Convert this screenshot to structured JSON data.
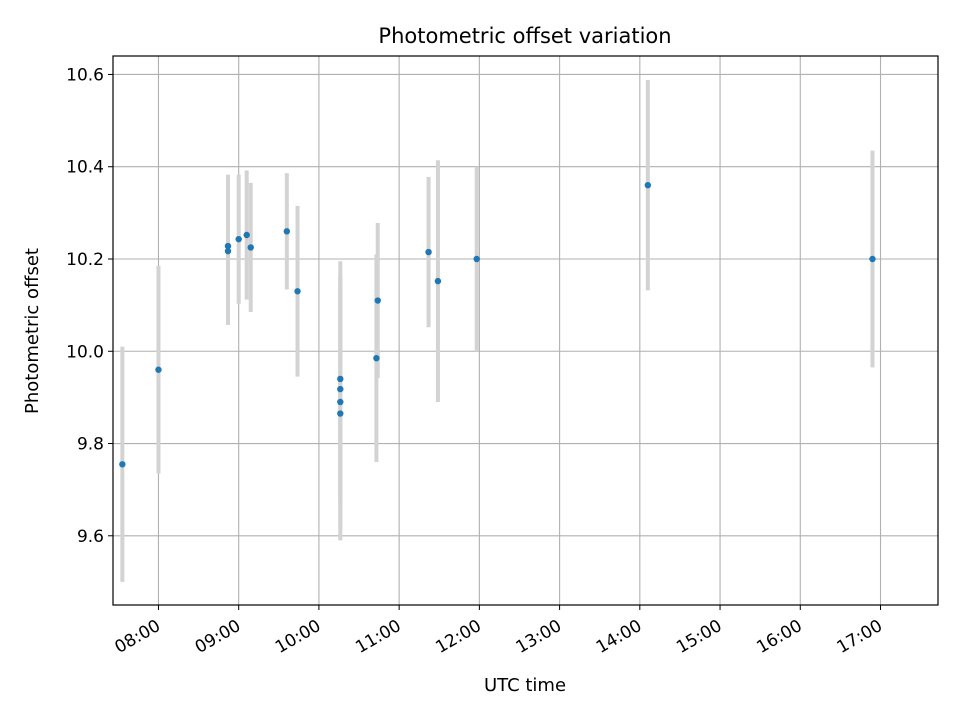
{
  "chart_data": {
    "type": "scatter",
    "title": "Photometric offset variation",
    "xlabel": "UTC time",
    "ylabel": "Photometric offset",
    "x_ticks": [
      "08:00",
      "09:00",
      "10:00",
      "11:00",
      "12:00",
      "13:00",
      "14:00",
      "15:00",
      "16:00",
      "17:00"
    ],
    "y_ticks": [
      "9.6",
      "9.8",
      "10.0",
      "10.2",
      "10.4",
      "10.6"
    ],
    "xlim": [
      "07:26",
      "17:43"
    ],
    "ylim": [
      9.45,
      10.64
    ],
    "grid": true,
    "colors": {
      "points": "#1f77b4",
      "errorbars": "#d3d3d3",
      "grid": "#b0b0b0",
      "axes": "#000000"
    },
    "points": [
      {
        "time": "07:33",
        "y": 9.755,
        "yerr": 0.255
      },
      {
        "time": "08:00",
        "y": 9.96,
        "yerr": 0.225
      },
      {
        "time": "08:52",
        "y": 10.228,
        "yerr": 0.155
      },
      {
        "time": "08:52",
        "y": 10.217,
        "yerr": 0.16
      },
      {
        "time": "09:00",
        "y": 10.243,
        "yerr": 0.14
      },
      {
        "time": "09:06",
        "y": 10.252,
        "yerr": 0.14
      },
      {
        "time": "09:09",
        "y": 10.225,
        "yerr": 0.14
      },
      {
        "time": "09:36",
        "y": 10.26,
        "yerr": 0.126
      },
      {
        "time": "09:44",
        "y": 10.13,
        "yerr": 0.185
      },
      {
        "time": "10:16",
        "y": 9.94,
        "yerr": 0.255
      },
      {
        "time": "10:16",
        "y": 9.918,
        "yerr": 0.245
      },
      {
        "time": "10:16",
        "y": 9.89,
        "yerr": 0.275
      },
      {
        "time": "10:16",
        "y": 9.865,
        "yerr": 0.275
      },
      {
        "time": "10:43",
        "y": 9.985,
        "yerr": 0.225
      },
      {
        "time": "10:44",
        "y": 10.11,
        "yerr": 0.168
      },
      {
        "time": "11:22",
        "y": 10.215,
        "yerr": 0.163
      },
      {
        "time": "11:29",
        "y": 10.152,
        "yerr": 0.262
      },
      {
        "time": "11:58",
        "y": 10.2,
        "yerr": 0.2
      },
      {
        "time": "14:06",
        "y": 10.36,
        "yerr": 0.228
      },
      {
        "time": "16:54",
        "y": 10.2,
        "yerr": 0.235
      }
    ]
  }
}
